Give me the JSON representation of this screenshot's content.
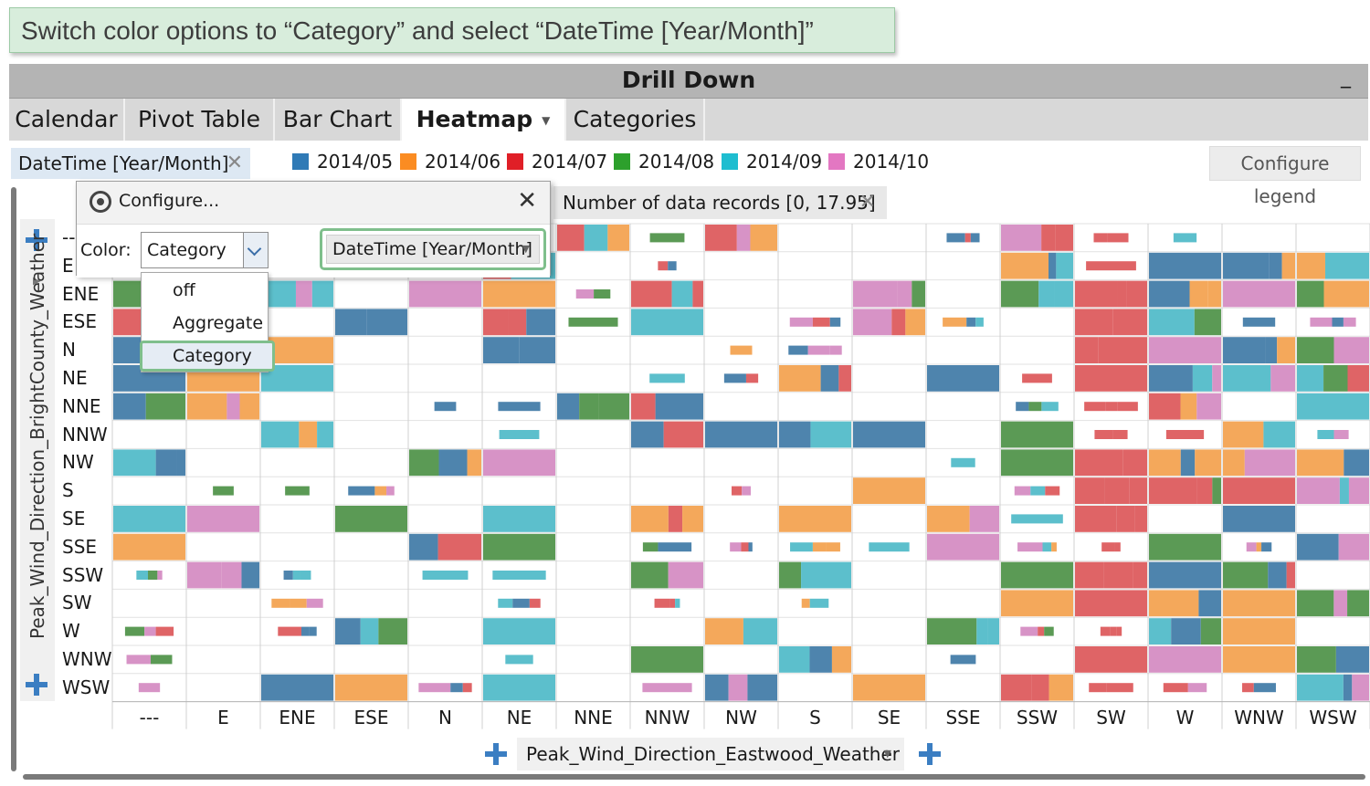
{
  "instruction": "Switch color options to “Category” and select “DateTime [Year/Month]”",
  "window": {
    "title": "Drill Down",
    "minimize": "_"
  },
  "tabs": [
    {
      "label": "Calendar"
    },
    {
      "label": "Pivot Table"
    },
    {
      "label": "Bar Chart"
    },
    {
      "label": "Heatmap",
      "active": true
    },
    {
      "label": "Categories"
    }
  ],
  "color_chip": {
    "label": "DateTime [Year/Month]",
    "close": "✕"
  },
  "legend": [
    {
      "label": "2014/05",
      "color": "#2f7ab6"
    },
    {
      "label": "2014/06",
      "color": "#fb8c22"
    },
    {
      "label": "2014/07",
      "color": "#e01f27"
    },
    {
      "label": "2014/08",
      "color": "#2da02c"
    },
    {
      "label": "2014/09",
      "color": "#1ebdd0"
    },
    {
      "label": "2014/10",
      "color": "#e377c2"
    }
  ],
  "configure_legend": "Configure legend",
  "filter_tag": {
    "label": "Number of data records  [0, 17.95]",
    "close": "✕"
  },
  "configure_popup": {
    "title": "Configure...",
    "close": "✕",
    "color_label": "Color:",
    "color_value": "Category",
    "category_value": "DateTime [Year/Month]",
    "options": [
      "off",
      "Aggregate",
      "Category"
    ]
  },
  "y_axis": {
    "variable": "Peak_Wind_Direction_BrightCounty_Weather",
    "categories": [
      "--",
      "E",
      "ENE",
      "ESE",
      "N",
      "NE",
      "NNE",
      "NNW",
      "NW",
      "S",
      "SE",
      "SSE",
      "SSW",
      "SW",
      "W",
      "WNW",
      "WSW"
    ]
  },
  "x_axis": {
    "variable": "Peak_Wind_Direction_Eastwood_Weather",
    "categories": [
      "---",
      "E",
      "ENE",
      "ESE",
      "N",
      "NE",
      "NNE",
      "NNW",
      "NW",
      "S",
      "SE",
      "SSE",
      "SSW",
      "SW",
      "W",
      "WNW",
      "WSW"
    ]
  }
}
